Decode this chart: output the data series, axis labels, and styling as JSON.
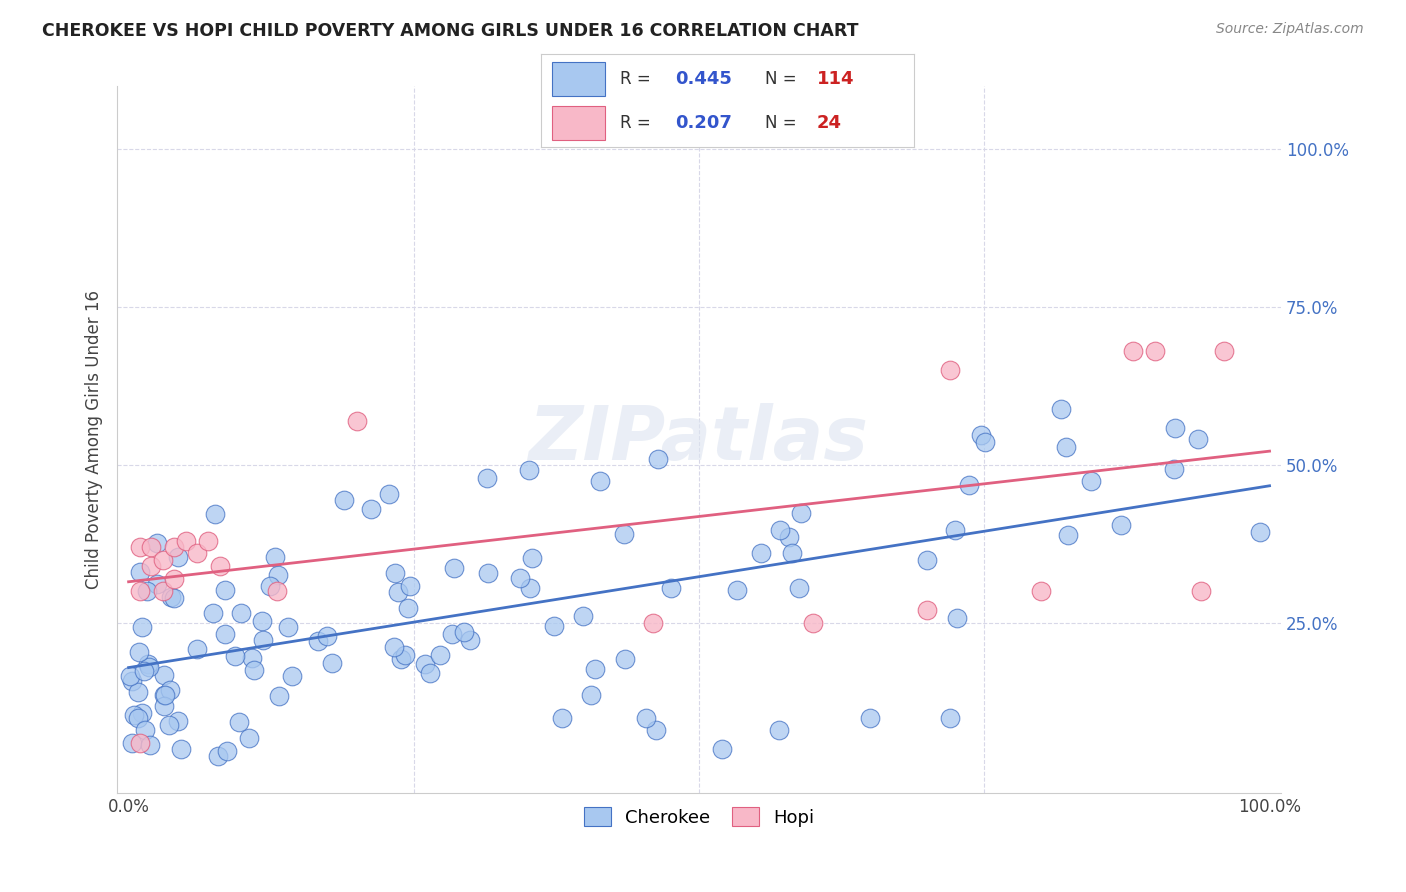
{
  "title": "CHEROKEE VS HOPI CHILD POVERTY AMONG GIRLS UNDER 16 CORRELATION CHART",
  "source": "Source: ZipAtlas.com",
  "ylabel": "Child Poverty Among Girls Under 16",
  "cherokee_color": "#a8c8f0",
  "hopi_color": "#f8b8c8",
  "cherokee_line_color": "#4472c4",
  "hopi_line_color": "#e06080",
  "cherokee_R": 0.445,
  "cherokee_N": 114,
  "hopi_R": 0.207,
  "hopi_N": 24,
  "legend_R_color": "#3355cc",
  "legend_N_color": "#cc2222",
  "watermark": "ZIPatlas",
  "background_color": "#ffffff",
  "grid_color": "#d8d8e8"
}
